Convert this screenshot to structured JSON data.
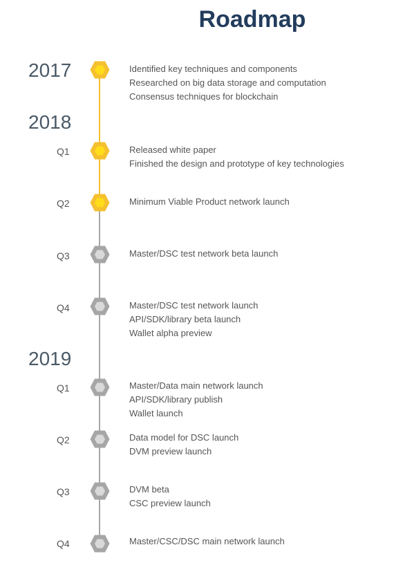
{
  "title": "Roadmap",
  "colors": {
    "done": "#f5c02f",
    "done_inner": "#ffdd1a",
    "pending": "#a6a6a6",
    "pending_inner": "#d9d9d9",
    "title": "#223c5c"
  },
  "years": [
    "2017",
    "2018",
    "2019"
  ],
  "milestones": [
    {
      "year": "2017",
      "quarter": "",
      "status": "done",
      "items": [
        "Identified key techniques and components",
        "Researched on big data storage and computation",
        "Consensus techniques for blockchain"
      ]
    },
    {
      "year": "2018",
      "quarter": "Q1",
      "status": "done",
      "items": [
        "Released white paper",
        "Finished the design and prototype of key technologies"
      ]
    },
    {
      "year": "2018",
      "quarter": "Q2",
      "status": "done",
      "items": [
        "Minimum Viable Product network launch"
      ]
    },
    {
      "year": "2018",
      "quarter": "Q3",
      "status": "pending",
      "items": [
        "Master/DSC test network beta launch"
      ]
    },
    {
      "year": "2018",
      "quarter": "Q4",
      "status": "pending",
      "items": [
        "Master/DSC test network launch",
        "API/SDK/library beta launch",
        "Wallet alpha preview"
      ]
    },
    {
      "year": "2019",
      "quarter": "Q1",
      "status": "pending",
      "items": [
        "Master/Data main network launch",
        "API/SDK/library publish",
        "Wallet launch"
      ]
    },
    {
      "year": "2019",
      "quarter": "Q2",
      "status": "pending",
      "items": [
        "Data model for DSC launch",
        "DVM preview launch"
      ]
    },
    {
      "year": "2019",
      "quarter": "Q3",
      "status": "pending",
      "items": [
        "DVM beta",
        "CSC preview launch"
      ]
    },
    {
      "year": "2019",
      "quarter": "Q4",
      "status": "pending",
      "items": [
        "Master/CSC/DSC main network launch"
      ]
    }
  ]
}
